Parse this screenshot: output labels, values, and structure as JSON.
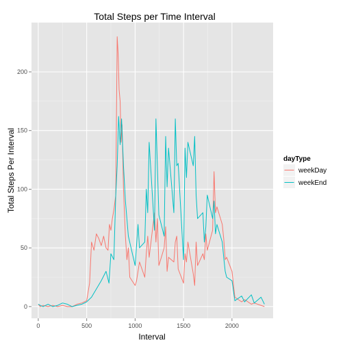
{
  "chart_data": {
    "type": "line",
    "title": "Total Steps per Time Interval",
    "xlabel": "Interval",
    "ylabel": "Total Steps Per Interval",
    "xlim": [
      -70,
      2425
    ],
    "ylim": [
      -10,
      242
    ],
    "x_ticks": [
      0,
      500,
      1000,
      1500,
      2000
    ],
    "y_ticks": [
      0,
      50,
      100,
      150,
      200
    ],
    "x_tick_labels": [
      "0",
      "500",
      "1000",
      "1500",
      "2000"
    ],
    "y_tick_labels": [
      "0",
      "50",
      "100",
      "150",
      "200"
    ],
    "grid": true,
    "legend": {
      "title": "dayType",
      "position": "right"
    },
    "series": [
      {
        "name": "weekDay",
        "color": "#F8766D",
        "x": [
          0,
          20,
          50,
          100,
          150,
          200,
          250,
          300,
          350,
          400,
          450,
          500,
          530,
          550,
          575,
          600,
          625,
          650,
          675,
          700,
          720,
          735,
          750,
          765,
          780,
          800,
          815,
          825,
          835,
          845,
          855,
          865,
          880,
          900,
          915,
          930,
          945,
          1000,
          1015,
          1030,
          1045,
          1100,
          1115,
          1130,
          1145,
          1200,
          1215,
          1230,
          1245,
          1300,
          1315,
          1330,
          1345,
          1400,
          1415,
          1430,
          1445,
          1500,
          1515,
          1530,
          1545,
          1600,
          1615,
          1630,
          1645,
          1700,
          1715,
          1730,
          1745,
          1800,
          1815,
          1830,
          1845,
          1900,
          1915,
          1930,
          1945,
          2000,
          2030,
          2100,
          2130,
          2200,
          2230,
          2300,
          2335
        ],
        "values": [
          2,
          0,
          1,
          0,
          1,
          0,
          1,
          0,
          0,
          2,
          3,
          5,
          20,
          55,
          48,
          62,
          58,
          52,
          60,
          50,
          48,
          70,
          65,
          75,
          82,
          95,
          230,
          215,
          185,
          175,
          140,
          155,
          100,
          60,
          40,
          50,
          25,
          18,
          22,
          30,
          38,
          25,
          45,
          60,
          42,
          80,
          55,
          75,
          35,
          50,
          68,
          30,
          42,
          38,
          55,
          60,
          32,
          20,
          45,
          38,
          55,
          28,
          18,
          55,
          35,
          45,
          40,
          62,
          48,
          65,
          115,
          80,
          85,
          70,
          58,
          40,
          42,
          30,
          8,
          4,
          6,
          2,
          3,
          1,
          0
        ]
      },
      {
        "name": "weekEnd",
        "color": "#00BFC4",
        "x": [
          0,
          20,
          50,
          100,
          150,
          200,
          250,
          300,
          350,
          400,
          450,
          500,
          550,
          600,
          650,
          700,
          730,
          750,
          780,
          800,
          815,
          830,
          845,
          860,
          880,
          900,
          930,
          1000,
          1030,
          1045,
          1100,
          1115,
          1130,
          1145,
          1200,
          1215,
          1230,
          1245,
          1300,
          1315,
          1330,
          1345,
          1400,
          1415,
          1430,
          1445,
          1500,
          1515,
          1530,
          1545,
          1600,
          1615,
          1630,
          1645,
          1700,
          1715,
          1730,
          1745,
          1800,
          1815,
          1830,
          1845,
          1900,
          1915,
          1930,
          1945,
          2000,
          2030,
          2100,
          2130,
          2200,
          2230,
          2300,
          2335
        ],
        "values": [
          2,
          1,
          0,
          2,
          0,
          1,
          3,
          2,
          0,
          1,
          2,
          4,
          8,
          15,
          22,
          30,
          20,
          45,
          40,
          95,
          120,
          162,
          138,
          160,
          120,
          90,
          60,
          35,
          70,
          50,
          55,
          100,
          80,
          140,
          65,
          160,
          120,
          78,
          60,
          145,
          102,
          135,
          80,
          160,
          120,
          122,
          40,
          135,
          110,
          140,
          120,
          145,
          95,
          75,
          80,
          55,
          68,
          95,
          75,
          90,
          62,
          70,
          55,
          42,
          30,
          25,
          22,
          5,
          9,
          4,
          10,
          3,
          8,
          2
        ]
      }
    ]
  }
}
